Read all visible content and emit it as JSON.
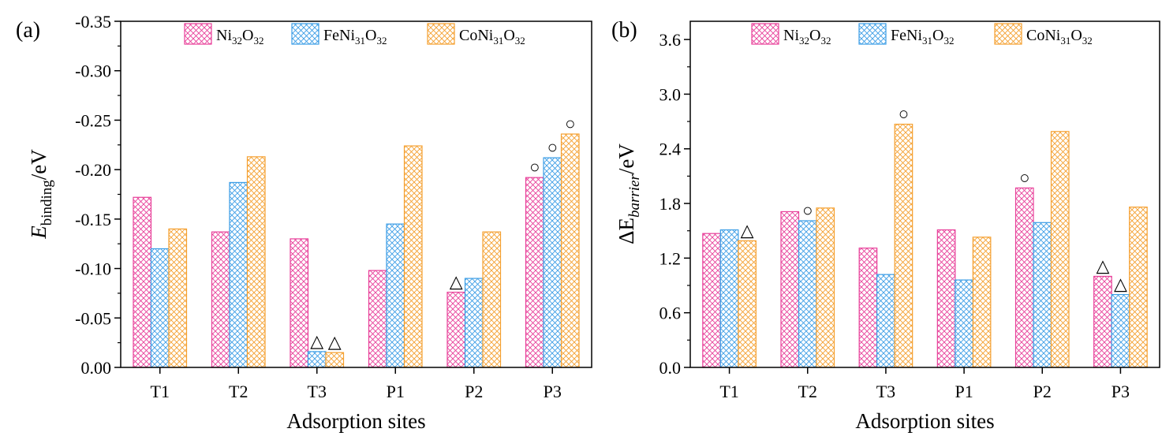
{
  "colors": {
    "Ni32O32": "#e8409a",
    "FeNi31O32": "#3d9ee6",
    "CoNi31O32": "#f5a030"
  },
  "chart_data": [
    {
      "type": "bar",
      "panel_label": "(a)",
      "categories": [
        "T1",
        "T2",
        "T3",
        "P1",
        "P2",
        "P3"
      ],
      "xlabel": "Adsorption sites",
      "ylabel_main": "E",
      "ylabel_sub": "binding",
      "ylabel_unit": "/eV",
      "ylim": [
        0,
        -0.35
      ],
      "yticks": [
        "0.00",
        "-0.05",
        "-0.10",
        "-0.15",
        "-0.20",
        "-0.25",
        "-0.30",
        "-0.35"
      ],
      "ytick_values": [
        0,
        -0.05,
        -0.1,
        -0.15,
        -0.2,
        -0.25,
        -0.3,
        -0.35
      ],
      "grid": false,
      "legend_position": "top",
      "series": [
        {
          "key": "Ni32O32",
          "legend": {
            "a": "Ni",
            "b": "32",
            "c": "O",
            "d": "32"
          },
          "values": [
            -0.172,
            -0.137,
            -0.13,
            -0.098,
            -0.076,
            -0.192
          ]
        },
        {
          "key": "FeNi31O32",
          "legend": {
            "a": "FeNi",
            "b": "31",
            "c": "O",
            "d": "32"
          },
          "values": [
            -0.12,
            -0.187,
            -0.016,
            -0.145,
            -0.09,
            -0.212
          ]
        },
        {
          "key": "CoNi31O32",
          "legend": {
            "a": "CoNi",
            "b": "31",
            "c": "O",
            "d": "32"
          },
          "values": [
            -0.14,
            -0.213,
            -0.015,
            -0.224,
            -0.137,
            -0.236
          ]
        }
      ],
      "annotations": [
        {
          "symbol": "△",
          "category": 2,
          "series": 1
        },
        {
          "symbol": "△",
          "category": 2,
          "series": 2
        },
        {
          "symbol": "△",
          "category": 4,
          "series": 0
        },
        {
          "symbol": "○",
          "category": 5,
          "series": 0
        },
        {
          "symbol": "○",
          "category": 5,
          "series": 1
        },
        {
          "symbol": "○",
          "category": 5,
          "series": 2
        }
      ]
    },
    {
      "type": "bar",
      "panel_label": "(b)",
      "categories": [
        "T1",
        "T2",
        "T3",
        "P1",
        "P2",
        "P3"
      ],
      "xlabel": "Adsorption sites",
      "ylabel_main": "ΔE",
      "ylabel_sub": "barrier",
      "ylabel_unit": "/eV",
      "ylim": [
        0,
        3.8
      ],
      "yticks": [
        "0.0",
        "0.6",
        "1.2",
        "1.8",
        "2.4",
        "3.0",
        "3.6"
      ],
      "ytick_values": [
        0,
        0.6,
        1.2,
        1.8,
        2.4,
        3.0,
        3.6
      ],
      "grid": false,
      "legend_position": "top",
      "series": [
        {
          "key": "Ni32O32",
          "legend": {
            "a": "Ni",
            "b": "32",
            "c": "O",
            "d": "32"
          },
          "values": [
            1.47,
            1.71,
            1.31,
            1.51,
            1.97,
            1.0
          ]
        },
        {
          "key": "FeNi31O32",
          "legend": {
            "a": "FeNi",
            "b": "31",
            "c": "O",
            "d": "32"
          },
          "values": [
            1.51,
            1.61,
            1.02,
            0.96,
            1.59,
            0.8
          ]
        },
        {
          "key": "CoNi31O32",
          "legend": {
            "a": "CoNi",
            "b": "31",
            "c": "O",
            "d": "32"
          },
          "values": [
            1.39,
            1.75,
            2.67,
            1.43,
            2.59,
            1.76
          ]
        }
      ],
      "annotations": [
        {
          "symbol": "△",
          "category": 0,
          "series": 2
        },
        {
          "symbol": "○",
          "category": 1,
          "series": 1
        },
        {
          "symbol": "○",
          "category": 2,
          "series": 2
        },
        {
          "symbol": "○",
          "category": 4,
          "series": 0
        },
        {
          "symbol": "△",
          "category": 5,
          "series": 0
        },
        {
          "symbol": "△",
          "category": 5,
          "series": 1
        }
      ]
    }
  ]
}
